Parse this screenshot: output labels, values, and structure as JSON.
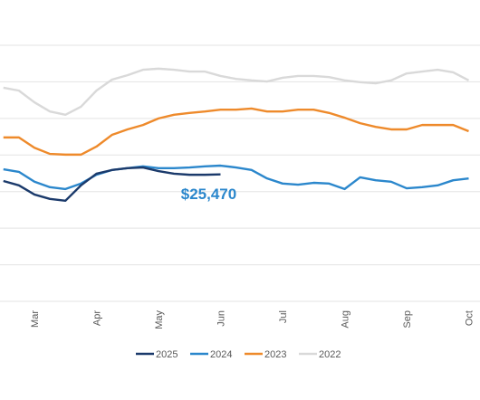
{
  "chart_data": {
    "type": "line",
    "categories": [
      null,
      null,
      "Mar",
      null,
      null,
      null,
      "Apr",
      null,
      null,
      null,
      "May",
      null,
      null,
      null,
      "Jun",
      null,
      null,
      null,
      "Jul",
      null,
      null,
      null,
      "Aug",
      null,
      null,
      null,
      "Sep",
      null,
      null,
      null,
      "Oct"
    ],
    "series": [
      {
        "name": "2025",
        "color": "#1b3a6b",
        "values": [
          25290,
          25170,
          24920,
          24800,
          24750,
          25170,
          25490,
          25590,
          25640,
          25660,
          25560,
          25490,
          25460,
          25460,
          25470,
          null,
          null,
          null,
          null,
          null,
          null,
          null,
          null,
          null,
          null,
          null,
          null,
          null,
          null,
          null,
          null
        ],
        "value_labels": [
          null,
          null,
          null,
          null,
          null,
          null,
          null,
          null,
          null,
          null,
          null,
          null,
          null,
          null,
          "$25,470",
          null,
          null,
          null,
          null,
          null,
          null,
          null,
          null,
          null,
          null,
          null,
          null,
          null,
          null,
          null,
          null
        ]
      },
      {
        "name": "2024",
        "color": "#2b87cc",
        "values": [
          25610,
          25540,
          25270,
          25120,
          25070,
          25220,
          25460,
          25590,
          25640,
          25690,
          25640,
          25640,
          25660,
          25690,
          25710,
          25660,
          25590,
          25360,
          25220,
          25190,
          25240,
          25220,
          25070,
          25390,
          25310,
          25270,
          25090,
          25120,
          25170,
          25310,
          25360
        ]
      },
      {
        "name": "2023",
        "color": "#ee8a2b",
        "values": [
          26480,
          26480,
          26200,
          26030,
          26010,
          26010,
          26230,
          26550,
          26700,
          26820,
          27000,
          27100,
          27150,
          27190,
          27240,
          27240,
          27270,
          27190,
          27190,
          27240,
          27240,
          27150,
          27020,
          26870,
          26770,
          26700,
          26700,
          26820,
          26820,
          26820,
          26650
        ]
      },
      {
        "name": "2022",
        "color": "#d9d9d9",
        "values": [
          27840,
          27760,
          27440,
          27190,
          27100,
          27320,
          27760,
          28060,
          28180,
          28330,
          28360,
          28330,
          28280,
          28280,
          28160,
          28080,
          28040,
          28010,
          28110,
          28160,
          28160,
          28130,
          28040,
          27990,
          27960,
          28040,
          28230,
          28280,
          28330,
          28260,
          28040
        ]
      }
    ],
    "ylim": [
      22000,
      29000
    ],
    "yticks": [
      22000,
      23000,
      24000,
      25000,
      26000,
      27000,
      28000,
      29000
    ],
    "grid": true
  }
}
